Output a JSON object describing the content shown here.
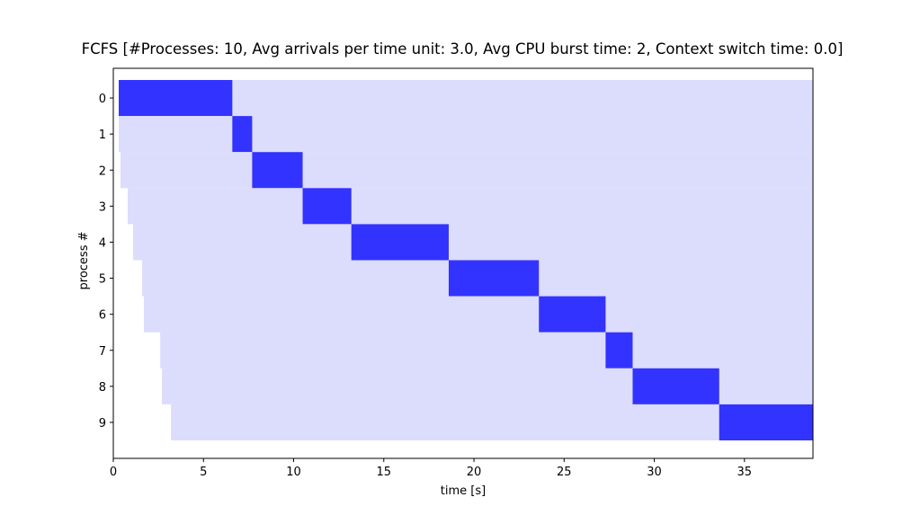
{
  "chart_data": {
    "type": "gantt",
    "title": "FCFS [#Processes: 10, Avg arrivals per time unit: 3.0, Avg CPU burst time: 2, Context switch time: 0.0]",
    "xlabel": "time [s]",
    "ylabel": "process #",
    "xlim": [
      0,
      38.8
    ],
    "x_ticks": [
      0,
      5,
      10,
      15,
      20,
      25,
      30,
      35
    ],
    "y_categories": [
      "0",
      "1",
      "2",
      "3",
      "4",
      "5",
      "6",
      "7",
      "8",
      "9"
    ],
    "grid": false,
    "colors": {
      "waiting": "#dcdcfc",
      "running": "#3333ff"
    },
    "processes": [
      {
        "id": 0,
        "arrival": 0.3,
        "start": 0.3,
        "end": 6.6
      },
      {
        "id": 1,
        "arrival": 0.3,
        "start": 6.6,
        "end": 7.7
      },
      {
        "id": 2,
        "arrival": 0.4,
        "start": 7.7,
        "end": 10.5
      },
      {
        "id": 3,
        "arrival": 0.8,
        "start": 10.5,
        "end": 13.2
      },
      {
        "id": 4,
        "arrival": 1.1,
        "start": 13.2,
        "end": 18.6
      },
      {
        "id": 5,
        "arrival": 1.6,
        "start": 18.6,
        "end": 23.6
      },
      {
        "id": 6,
        "arrival": 1.7,
        "start": 23.6,
        "end": 27.3
      },
      {
        "id": 7,
        "arrival": 2.6,
        "start": 27.3,
        "end": 28.8
      },
      {
        "id": 8,
        "arrival": 2.7,
        "start": 28.8,
        "end": 33.6
      },
      {
        "id": 9,
        "arrival": 3.2,
        "start": 33.6,
        "end": 38.8
      }
    ]
  }
}
